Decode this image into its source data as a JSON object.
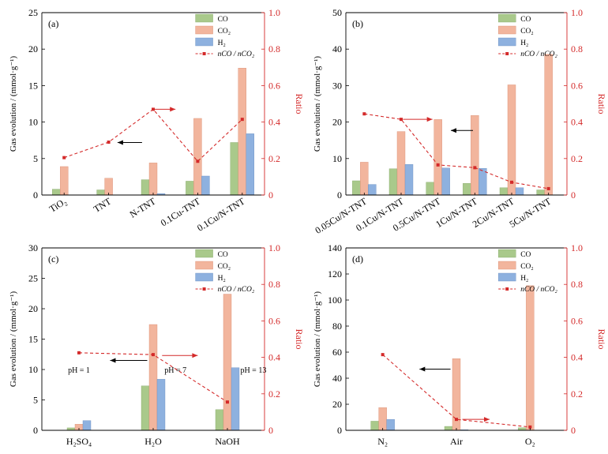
{
  "colors": {
    "CO": "#a9c98b",
    "CO2": "#f2b59d",
    "H2": "#8eb1df",
    "ratio": "#d42a2a",
    "arrow": "#000000"
  },
  "legend": [
    "CO",
    "CO₂",
    "H₂",
    "nCO / nCO₂"
  ],
  "axis_text": {
    "ylabel": "Gas evolution / (mmol·g⁻¹)",
    "right_ylabel": "Ratio"
  },
  "chart_data": [
    {
      "panel": "(a)",
      "type": "bar",
      "categories": [
        "TiO₂",
        "TNT",
        "N-TNT",
        "0.1Cu-TNT",
        "0.1Cu/N-TNT"
      ],
      "series": [
        {
          "name": "CO",
          "values": [
            0.8,
            0.7,
            2.1,
            1.9,
            7.2
          ]
        },
        {
          "name": "CO₂",
          "values": [
            3.9,
            2.3,
            4.4,
            10.5,
            17.4
          ]
        },
        {
          "name": "H₂",
          "values": [
            0,
            0,
            0.2,
            2.6,
            8.4
          ]
        }
      ],
      "ratio": [
        0.205,
        0.29,
        0.47,
        0.185,
        0.415
      ],
      "ylim": [
        0,
        25
      ],
      "yticks": [
        0,
        5,
        10,
        15,
        20,
        25
      ],
      "ratio_lim": [
        0,
        1.0
      ],
      "ratio_ticks": [
        "0",
        "0.2",
        "0.4",
        "0.6",
        "0.8",
        "1.0"
      ],
      "arrows": [
        {
          "direction": "left",
          "at_y": 7.2,
          "from_cat": 1.75,
          "to_cat": 1.2
        },
        {
          "direction": "right",
          "at_ratio": 0.47,
          "from_cat": 2.0,
          "to_cat": 2.5
        }
      ],
      "notes": [],
      "rotate_labels": true
    },
    {
      "panel": "(b)",
      "type": "bar",
      "categories": [
        "0.05Cu/N-TNT",
        "0.1Cu/N-TNT",
        "0.5Cu/N-TNT",
        "1Cu/N-TNT",
        "2Cu/N-TNT",
        "5Cu/N-TNT"
      ],
      "series": [
        {
          "name": "CO",
          "values": [
            3.9,
            7.2,
            3.5,
            3.2,
            2.0,
            1.4
          ]
        },
        {
          "name": "CO₂",
          "values": [
            9.0,
            17.4,
            20.7,
            21.8,
            30.2,
            38.6
          ]
        },
        {
          "name": "H₂",
          "values": [
            2.9,
            8.4,
            7.4,
            7.3,
            2.0,
            0
          ]
        }
      ],
      "ratio": [
        0.445,
        0.415,
        0.165,
        0.15,
        0.07,
        0.035
      ],
      "ylim": [
        0,
        50
      ],
      "yticks": [
        0,
        10,
        20,
        30,
        40,
        50
      ],
      "ratio_lim": [
        0,
        1.0
      ],
      "ratio_ticks": [
        "0",
        "0.2",
        "0.4",
        "0.6",
        "0.8",
        "1.0"
      ],
      "arrows": [
        {
          "direction": "right",
          "at_ratio": 0.415,
          "from_cat": 1.05,
          "to_cat": 1.85
        },
        {
          "direction": "left",
          "at_y": 17.7,
          "from_cat": 2.95,
          "to_cat": 2.35
        }
      ],
      "notes": [],
      "rotate_labels": true
    },
    {
      "panel": "(c)",
      "type": "bar",
      "categories": [
        "H₂SO₄",
        "H₂O",
        "NaOH"
      ],
      "series": [
        {
          "name": "CO",
          "values": [
            0.4,
            7.3,
            3.4
          ]
        },
        {
          "name": "CO₂",
          "values": [
            1.0,
            17.4,
            22.4
          ]
        },
        {
          "name": "H₂",
          "values": [
            1.6,
            8.4,
            10.3
          ]
        }
      ],
      "ratio": [
        0.425,
        0.415,
        0.155
      ],
      "ylim": [
        0,
        30
      ],
      "yticks": [
        0,
        5,
        10,
        15,
        20,
        25,
        30
      ],
      "ratio_lim": [
        0,
        1.0
      ],
      "ratio_ticks": [
        "0",
        "0.2",
        "0.4",
        "0.6",
        "0.8",
        "1.0"
      ],
      "arrows": [
        {
          "direction": "left",
          "at_y": 11.5,
          "from_cat": 0.92,
          "to_cat": 0.42
        },
        {
          "direction": "right",
          "at_ratio": 0.41,
          "from_cat": 1.12,
          "to_cat": 1.6
        }
      ],
      "notes": [
        {
          "text": "pH = 1",
          "cat": 0.0,
          "y": 9.5
        },
        {
          "text": "pH = 7",
          "cat": 1.3,
          "y": 9.5
        },
        {
          "text": "pH = 13",
          "cat": 2.35,
          "y": 9.5
        }
      ],
      "rotate_labels": false
    },
    {
      "panel": "(d)",
      "type": "bar",
      "categories": [
        "N₂",
        "Air",
        "O₂"
      ],
      "series": [
        {
          "name": "CO",
          "values": [
            7.0,
            3.0,
            2.0
          ]
        },
        {
          "name": "CO₂",
          "values": [
            17.4,
            55.0,
            111.0
          ]
        },
        {
          "name": "H₂",
          "values": [
            8.4,
            0.4,
            0
          ]
        }
      ],
      "ratio": [
        0.415,
        0.06,
        0.018
      ],
      "ylim": [
        0,
        140
      ],
      "yticks": [
        0,
        20,
        40,
        60,
        80,
        100,
        120,
        140
      ],
      "ratio_lim": [
        0,
        1.0
      ],
      "ratio_ticks": [
        "0",
        "0.2",
        "0.4",
        "0.6",
        "0.8",
        "1.0"
      ],
      "arrows": [
        {
          "direction": "left",
          "at_y": 47,
          "from_cat": 0.92,
          "to_cat": 0.5
        },
        {
          "direction": "right",
          "at_ratio": 0.06,
          "from_cat": 1.08,
          "to_cat": 1.45
        }
      ],
      "notes": [],
      "rotate_labels": false
    }
  ]
}
